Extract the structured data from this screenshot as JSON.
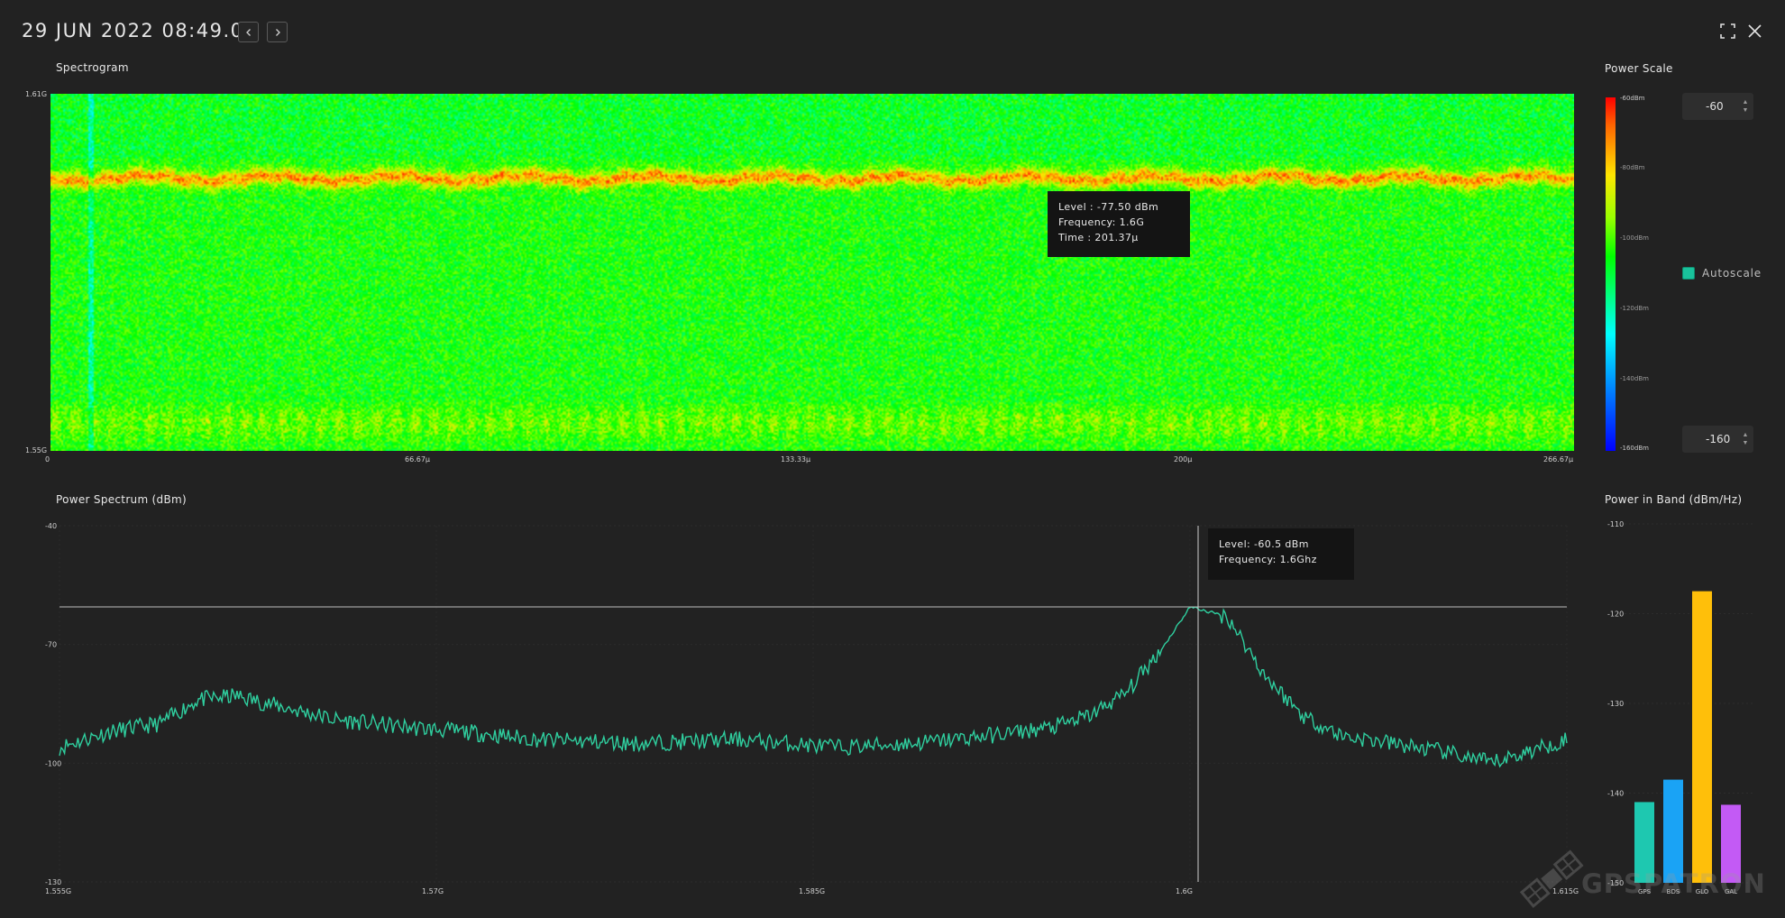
{
  "header": {
    "datetime": "29 JUN 2022 08:49.02",
    "prev_icon": "chevron-left-icon",
    "next_icon": "chevron-right-icon",
    "fullscreen_icon": "fullscreen-icon",
    "close_icon": "close-icon"
  },
  "spectrogram": {
    "title": "Spectrogram",
    "y_top_label": "1.61G",
    "y_bottom_label": "1.55G",
    "x_tick_labels": [
      "0",
      "66.67µ",
      "133.33µ",
      "200µ",
      "266.67µ"
    ],
    "band_fraction": 0.235,
    "tooltip": {
      "level": "Level : -77.50 dBm",
      "frequency": "Frequency: 1.6G",
      "time": "Time : 201.37µ"
    }
  },
  "power_scale": {
    "title": "Power Scale",
    "labels": [
      "-60dBm",
      "-80dBm",
      "-100dBm",
      "-120dBm",
      "-140dBm",
      "-160dBm"
    ],
    "max_value": "-60",
    "min_value": "-160",
    "autoscale_label": "Autoscale",
    "autoscale_checked": true,
    "colors": [
      "#ff0000",
      "#ffe600",
      "#00ff00",
      "#00ffff",
      "#0000ff"
    ]
  },
  "power_spectrum": {
    "title": "Power Spectrum (dBm)",
    "tooltip": {
      "level": "Level: -60.5 dBm",
      "frequency": "Frequency: 1.6Ghz"
    }
  },
  "power_in_band": {
    "title": "Power in Band (dBm/Hz)"
  },
  "chart_data": [
    {
      "type": "line",
      "title": "Power Spectrum (dBm)",
      "x_tick_labels": [
        "1.555G",
        "1.57G",
        "1.585G",
        "1.6G",
        "1.615G"
      ],
      "y_tick_labels": [
        "-40",
        "-70",
        "-100",
        "-130"
      ],
      "xlim": [
        1.555,
        1.615
      ],
      "ylim": [
        -130,
        -40
      ],
      "series": [
        {
          "color": "#2fcf9f",
          "x": [
            1.555,
            1.557,
            1.559,
            1.5605,
            1.562,
            1.564,
            1.566,
            1.5675,
            1.569,
            1.571,
            1.574,
            1.578,
            1.582,
            1.586,
            1.589,
            1.592,
            1.5945,
            1.596,
            1.5975,
            1.599,
            1.6,
            1.6015,
            1.603,
            1.6045,
            1.606,
            1.608,
            1.61,
            1.612,
            1.6135,
            1.615
          ],
          "y": [
            -96,
            -92,
            -90,
            -84,
            -83,
            -86,
            -89,
            -90,
            -91,
            -92,
            -94,
            -95,
            -94,
            -96,
            -95,
            -93,
            -91,
            -88,
            -82,
            -70,
            -60.5,
            -63,
            -78,
            -88,
            -93,
            -95,
            -97,
            -100,
            -97,
            -94
          ]
        }
      ],
      "hline": -60.5,
      "crosshair_x": 1.6
    },
    {
      "type": "bar",
      "title": "Power in Band (dBm/Hz)",
      "categories": [
        "GPS",
        "BDS",
        "GLO",
        "GAL"
      ],
      "values": [
        -141,
        -138.5,
        -117.5,
        -141.3
      ],
      "colors": [
        "#1ec8b0",
        "#1aa3f5",
        "#ffbf0a",
        "#c35af5"
      ],
      "y_tick_labels": [
        "-110",
        "-120",
        "-130",
        "-140",
        "-150"
      ],
      "ylim": [
        -150,
        -110
      ]
    }
  ],
  "watermark": {
    "text": "GPSPATRON",
    "icon": "satellite-icon"
  }
}
